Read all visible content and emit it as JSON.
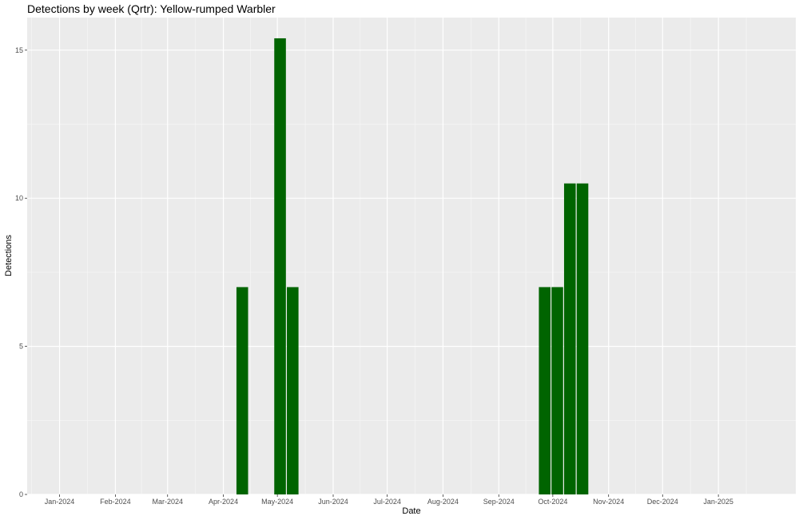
{
  "chart_data": {
    "type": "bar",
    "title": "Detections by week (Qrtr): Yellow-rumped Warbler",
    "xlabel": "Date",
    "ylabel": "Detections",
    "x_ticks": [
      "Jan-2024",
      "Feb-2024",
      "Mar-2024",
      "Apr-2024",
      "May-2024",
      "Jun-2024",
      "Jul-2024",
      "Aug-2024",
      "Sep-2024",
      "Oct-2024",
      "Nov-2024",
      "Dec-2024",
      "Jan-2025"
    ],
    "y_ticks": [
      0,
      5,
      10,
      15
    ],
    "ylim": [
      0,
      16.1
    ],
    "xlim": [
      "2023-12-14",
      "2025-02-13"
    ],
    "bars": [
      {
        "week_start": "2024-04-08",
        "value": 7
      },
      {
        "week_start": "2024-04-29",
        "value": 15.4
      },
      {
        "week_start": "2024-05-06",
        "value": 7
      },
      {
        "week_start": "2024-09-23",
        "value": 7
      },
      {
        "week_start": "2024-09-30",
        "value": 7
      },
      {
        "week_start": "2024-10-07",
        "value": 10.5
      },
      {
        "week_start": "2024-10-14",
        "value": 10.5
      }
    ],
    "bar_color": "#006400",
    "panel_background": "#ebebeb",
    "grid": true
  }
}
